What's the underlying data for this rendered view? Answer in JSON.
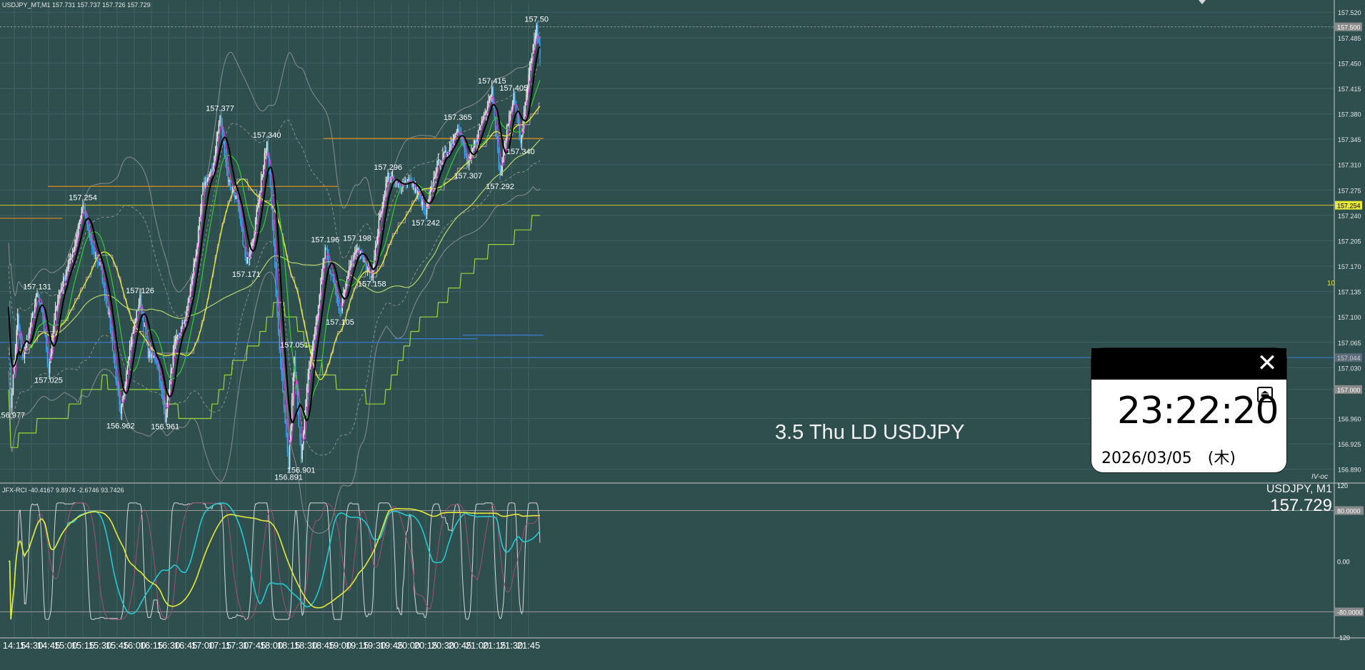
{
  "window": {
    "symbol_header": "USDJPY_MT,M1  157.731 157.737 157.726 157.729",
    "indicator_header": "JFX-RCI -40.4167 9.8974 -2.6746 93.7426",
    "watermark": "3.5 Thu LD USDJPY",
    "symbol_tf": "USDJPY, M1",
    "bid": "157.729",
    "brand": "IV-oc",
    "small_label": "10"
  },
  "clock": {
    "time": "23:22:20",
    "date": "2026/03/05　(木)",
    "close_icon": "close-icon",
    "pin_icon": "pin-icon"
  },
  "colors": {
    "background": "#2f4f4f",
    "candle_up": "#f2f2f2",
    "candle_down": "#3fa9f5",
    "sma_black": "#000000",
    "ma_magenta": "#d63fd6",
    "ma_green": "#33cc33",
    "ma_yellow": "#e8e83a",
    "ma_olive": "#b7d46a",
    "bands": "#8c8c8c",
    "orange_line": "#e08c1a",
    "blue_line": "#3a7bd5",
    "yellow_level": "#d4c020",
    "rci_white": "#d8d8d8",
    "rci_cyan": "#25c8d0",
    "rci_yellow": "#e8e83a",
    "rci_pink": "#a05070"
  },
  "chart_data": [
    {
      "type": "candlestick",
      "symbol": "USDJPY_MT",
      "timeframe": "M1",
      "ohlc_header": {
        "open": 157.731,
        "high": 157.737,
        "low": 157.726,
        "close": 157.729
      },
      "ylim": [
        156.872,
        157.535
      ],
      "y_ticks": [
        "157.520",
        "157.500",
        "157.485",
        "157.450",
        "157.415",
        "157.380",
        "157.345",
        "157.310",
        "157.275",
        "157.254",
        "157.240",
        "157.205",
        "157.170",
        "157.135",
        "157.100",
        "157.065",
        "157.044",
        "157.030",
        "157.000",
        "156.960",
        "156.925",
        "156.890"
      ],
      "x_ticks": [
        "14:15",
        "14:30",
        "14:45",
        "15:00",
        "15:15",
        "15:30",
        "15:45",
        "16:00",
        "16:15",
        "16:30",
        "16:45",
        "17:00",
        "17:15",
        "17:30",
        "17:45",
        "18:00",
        "18:15",
        "18:30",
        "18:45",
        "19:00",
        "19:15",
        "19:30",
        "19:45",
        "20:00",
        "20:15",
        "20:30",
        "20:45",
        "21:00",
        "21:15",
        "21:30",
        "21:45"
      ],
      "price_path": [
        {
          "t": "14:10",
          "p": 157.12
        },
        {
          "t": "14:12",
          "p": 156.977
        },
        {
          "t": "14:18",
          "p": 157.1
        },
        {
          "t": "14:22",
          "p": 157.04
        },
        {
          "t": "14:28",
          "p": 157.08
        },
        {
          "t": "14:35",
          "p": 157.131
        },
        {
          "t": "14:40",
          "p": 157.1
        },
        {
          "t": "14:45",
          "p": 157.025
        },
        {
          "t": "14:52",
          "p": 157.12
        },
        {
          "t": "15:00",
          "p": 157.16
        },
        {
          "t": "15:08",
          "p": 157.2
        },
        {
          "t": "15:15",
          "p": 157.254
        },
        {
          "t": "15:22",
          "p": 157.2
        },
        {
          "t": "15:30",
          "p": 157.17
        },
        {
          "t": "15:38",
          "p": 157.1
        },
        {
          "t": "15:45",
          "p": 157.0
        },
        {
          "t": "15:48",
          "p": 156.962
        },
        {
          "t": "15:55",
          "p": 157.05
        },
        {
          "t": "16:00",
          "p": 157.09
        },
        {
          "t": "16:05",
          "p": 157.126
        },
        {
          "t": "16:12",
          "p": 157.05
        },
        {
          "t": "16:20",
          "p": 157.04
        },
        {
          "t": "16:27",
          "p": 156.961
        },
        {
          "t": "16:35",
          "p": 157.06
        },
        {
          "t": "16:45",
          "p": 157.1
        },
        {
          "t": "16:55",
          "p": 157.2
        },
        {
          "t": "17:00",
          "p": 157.28
        },
        {
          "t": "17:08",
          "p": 157.3
        },
        {
          "t": "17:15",
          "p": 157.377
        },
        {
          "t": "17:22",
          "p": 157.29
        },
        {
          "t": "17:30",
          "p": 157.26
        },
        {
          "t": "17:38",
          "p": 157.171
        },
        {
          "t": "17:45",
          "p": 157.22
        },
        {
          "t": "17:52",
          "p": 157.3
        },
        {
          "t": "17:56",
          "p": 157.34
        },
        {
          "t": "18:00",
          "p": 157.26
        },
        {
          "t": "18:05",
          "p": 157.1
        },
        {
          "t": "18:10",
          "p": 157.0
        },
        {
          "t": "18:15",
          "p": 156.891
        },
        {
          "t": "18:20",
          "p": 157.051
        },
        {
          "t": "18:26",
          "p": 156.901
        },
        {
          "t": "18:32",
          "p": 157.02
        },
        {
          "t": "18:40",
          "p": 157.1
        },
        {
          "t": "18:47",
          "p": 157.196
        },
        {
          "t": "18:55",
          "p": 157.14
        },
        {
          "t": "19:00",
          "p": 157.105
        },
        {
          "t": "19:07",
          "p": 157.16
        },
        {
          "t": "19:15",
          "p": 157.198
        },
        {
          "t": "19:22",
          "p": 157.17
        },
        {
          "t": "19:28",
          "p": 157.158
        },
        {
          "t": "19:35",
          "p": 157.24
        },
        {
          "t": "19:42",
          "p": 157.296
        },
        {
          "t": "19:50",
          "p": 157.28
        },
        {
          "t": "20:00",
          "p": 157.29
        },
        {
          "t": "20:08",
          "p": 157.27
        },
        {
          "t": "20:15",
          "p": 157.242
        },
        {
          "t": "20:25",
          "p": 157.31
        },
        {
          "t": "20:35",
          "p": 157.33
        },
        {
          "t": "20:43",
          "p": 157.365
        },
        {
          "t": "20:52",
          "p": 157.307
        },
        {
          "t": "21:00",
          "p": 157.35
        },
        {
          "t": "21:08",
          "p": 157.39
        },
        {
          "t": "21:13",
          "p": 157.415
        },
        {
          "t": "21:20",
          "p": 157.292
        },
        {
          "t": "21:27",
          "p": 157.37
        },
        {
          "t": "21:32",
          "p": 157.405
        },
        {
          "t": "21:38",
          "p": 157.34
        },
        {
          "t": "21:45",
          "p": 157.43
        },
        {
          "t": "21:52",
          "p": 157.5
        },
        {
          "t": "21:55",
          "p": 157.46
        }
      ],
      "annotations": [
        {
          "t": "14:12",
          "p": 156.977,
          "label": "156.977",
          "pos": "below"
        },
        {
          "t": "14:35",
          "p": 157.131,
          "label": "157.131",
          "pos": "above"
        },
        {
          "t": "14:45",
          "p": 157.025,
          "label": "157.025",
          "pos": "below"
        },
        {
          "t": "15:15",
          "p": 157.254,
          "label": "157.254",
          "pos": "above"
        },
        {
          "t": "15:48",
          "p": 156.962,
          "label": "156.962",
          "pos": "below"
        },
        {
          "t": "16:05",
          "p": 157.126,
          "label": "157.126",
          "pos": "above"
        },
        {
          "t": "16:27",
          "p": 156.961,
          "label": "156.961",
          "pos": "below"
        },
        {
          "t": "17:15",
          "p": 157.377,
          "label": "157.377",
          "pos": "above"
        },
        {
          "t": "17:38",
          "p": 157.171,
          "label": "157.171",
          "pos": "below"
        },
        {
          "t": "17:56",
          "p": 157.34,
          "label": "157.340",
          "pos": "above"
        },
        {
          "t": "18:15",
          "p": 156.891,
          "label": "156.891",
          "pos": "below"
        },
        {
          "t": "18:20",
          "p": 157.051,
          "label": "157.051",
          "pos": "above"
        },
        {
          "t": "18:26",
          "p": 156.901,
          "label": "156.901",
          "pos": "below"
        },
        {
          "t": "18:47",
          "p": 157.196,
          "label": "157.196",
          "pos": "above"
        },
        {
          "t": "19:00",
          "p": 157.105,
          "label": "157.105",
          "pos": "below"
        },
        {
          "t": "19:15",
          "p": 157.198,
          "label": "157.198",
          "pos": "above"
        },
        {
          "t": "19:28",
          "p": 157.158,
          "label": "157.158",
          "pos": "below"
        },
        {
          "t": "19:42",
          "p": 157.296,
          "label": "157.296",
          "pos": "above"
        },
        {
          "t": "20:15",
          "p": 157.242,
          "label": "157.242",
          "pos": "below"
        },
        {
          "t": "20:43",
          "p": 157.365,
          "label": "157.365",
          "pos": "above"
        },
        {
          "t": "20:52",
          "p": 157.307,
          "label": "157.307",
          "pos": "below"
        },
        {
          "t": "21:13",
          "p": 157.415,
          "label": "157.415",
          "pos": "above"
        },
        {
          "t": "21:20",
          "p": 157.292,
          "label": "157.292",
          "pos": "below"
        },
        {
          "t": "21:32",
          "p": 157.405,
          "label": "157.405",
          "pos": "above"
        },
        {
          "t": "21:38",
          "p": 157.34,
          "label": "157.340",
          "pos": "below"
        },
        {
          "t": "21:52",
          "p": 157.5,
          "label": "157.50",
          "pos": "above"
        }
      ],
      "horizontal_levels": [
        {
          "p": 157.5,
          "style": "dotted",
          "color": "#9a9a9a"
        },
        {
          "p": 157.254,
          "style": "solid",
          "color": "#d4c020"
        },
        {
          "p": 157.044,
          "style": "solid",
          "color": "#3a7bd5"
        }
      ],
      "price_tags": [
        {
          "p": 157.5,
          "label": "157.500",
          "bg": "#8a8a8a",
          "fg": "#ffffff"
        },
        {
          "p": 157.254,
          "label": "157.254",
          "bg": "#e8e83a",
          "fg": "#000000"
        },
        {
          "p": 157.044,
          "label": "157.044",
          "bg": "#5a6a7a",
          "fg": "#cfcfcf"
        },
        {
          "p": 157.0,
          "label": "157.000",
          "bg": "#8a8a8a",
          "fg": "#ffffff"
        }
      ],
      "orange_steps": [
        {
          "t0": "14:10",
          "t1": "14:57",
          "p": 157.236
        },
        {
          "t0": "14:57",
          "t1": "18:58",
          "p": 157.28
        },
        {
          "t0": "18:58",
          "t1": "21:58",
          "p": 157.346
        }
      ],
      "blue_steps": [
        {
          "t0": "14:10",
          "t1": "20:00",
          "p": 157.065
        },
        {
          "t0": "20:00",
          "t1": "21:00",
          "p": 157.07
        },
        {
          "t0": "21:00",
          "t1": "21:58",
          "p": 157.075
        }
      ]
    },
    {
      "type": "line",
      "name": "JFX-RCI",
      "values_header": [
        -40.4167,
        9.8974,
        -2.6746,
        93.7426
      ],
      "ylim": [
        -120,
        120
      ],
      "y_ticks": [
        "120",
        "80.0000",
        "0.00",
        "-80.0000",
        "-120"
      ],
      "levels": [
        80,
        -80
      ]
    }
  ]
}
